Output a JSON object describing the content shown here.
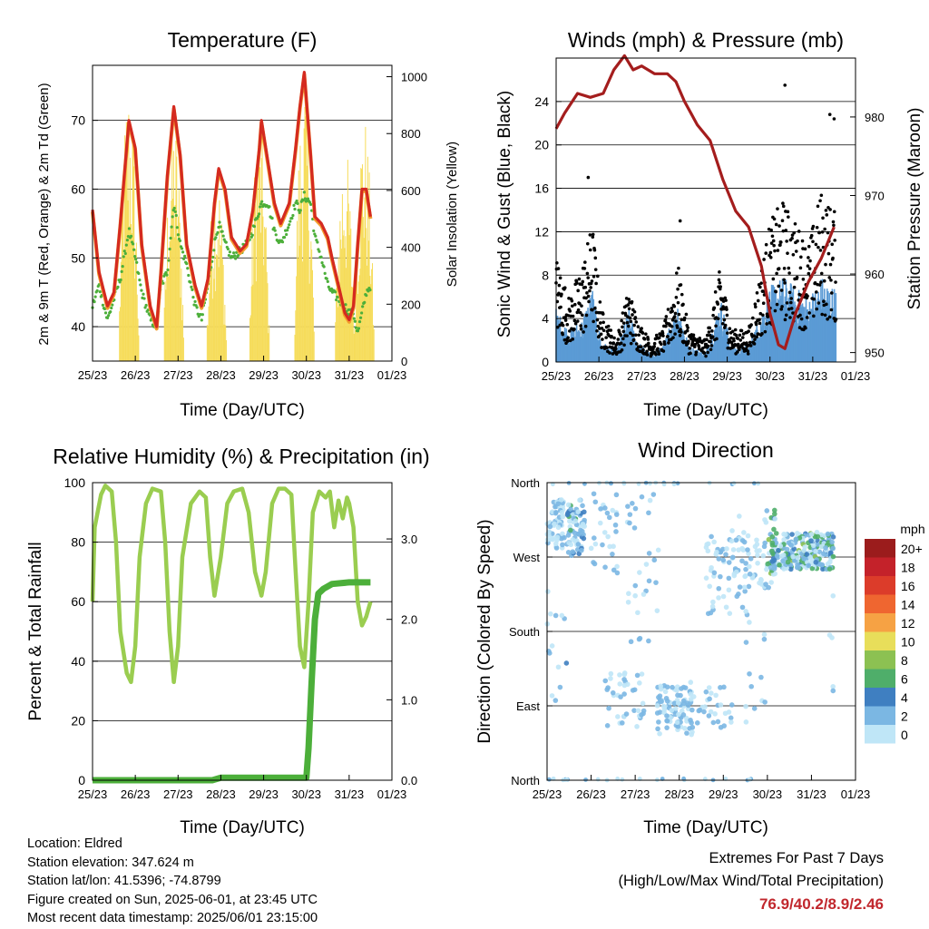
{
  "panels": {
    "temperature": {
      "title": "Temperature (F)",
      "ylabel": "2m & 9m T (Red, Orange) & 2m Td (Green)",
      "y2label": "Solar Insolation (Yellow)",
      "xlabel": "Time (Day/UTC)"
    },
    "winds": {
      "title": "Winds (mph) & Pressure (mb)",
      "ylabel": "Sonic Wind & Gust (Blue, Black)",
      "y2label": "Station Pressure (Maroon)",
      "xlabel": "Time (Day/UTC)"
    },
    "humidity": {
      "title": "Relative Humidity (%) & Precipitation (in)",
      "ylabel": "Percent & Total Rainfall",
      "xlabel": "Time (Day/UTC)"
    },
    "direction": {
      "title": "Wind Direction",
      "ylabel": "Direction (Colored By Speed)",
      "xlabel": "Time (Day/UTC)",
      "legend_title": "mph"
    }
  },
  "info": {
    "location": "Location: Eldred",
    "elevation": "Station elevation: 347.624 m",
    "latlon": "Station lat/lon: 41.5396; -74.8799",
    "created": "Figure created on Sun, 2025-06-01, at 23:45 UTC",
    "recent": "Most recent data timestamp: 2025/06/01 23:15:00"
  },
  "extremes": {
    "title": "Extremes For Past 7 Days",
    "subtitle": "(High/Low/Max Wind/Total Precipitation)",
    "values": "76.9/40.2/8.9/2.46"
  },
  "colors": {
    "temp_2m": "#d42a20",
    "temp_9m": "#f39b2d",
    "dewpoint": "#4caf3a",
    "solar": "#f6dc5a",
    "wind": "#5b9bd5",
    "gust": "#000000",
    "pressure": "#a41d1d",
    "rh": "#9acd50",
    "precip": "#4caf3a"
  },
  "chart_data": [
    {
      "id": "temperature",
      "type": "line",
      "x_ticks": [
        "25/23",
        "26/23",
        "27/23",
        "28/23",
        "29/23",
        "30/23",
        "31/23",
        "01/23"
      ],
      "ylim": [
        35,
        78
      ],
      "y_ticks": [
        40,
        50,
        60,
        70
      ],
      "y2lim": [
        0,
        1040
      ],
      "y2_ticks": [
        0,
        200,
        400,
        600,
        800,
        1000
      ],
      "series": [
        {
          "role": "temp_2m",
          "points": [
            [
              0,
              57
            ],
            [
              0.15,
              48
            ],
            [
              0.35,
              43
            ],
            [
              0.5,
              45
            ],
            [
              0.65,
              55
            ],
            [
              0.85,
              70
            ],
            [
              1.0,
              66
            ],
            [
              1.15,
              52
            ],
            [
              1.35,
              43
            ],
            [
              1.5,
              40
            ],
            [
              1.6,
              48
            ],
            [
              1.75,
              62
            ],
            [
              1.9,
              72
            ],
            [
              2.05,
              65
            ],
            [
              2.2,
              52
            ],
            [
              2.4,
              46
            ],
            [
              2.55,
              43
            ],
            [
              2.7,
              47
            ],
            [
              2.85,
              58
            ],
            [
              2.95,
              63
            ],
            [
              3.1,
              60
            ],
            [
              3.25,
              53
            ],
            [
              3.45,
              51
            ],
            [
              3.6,
              52
            ],
            [
              3.75,
              57
            ],
            [
              3.9,
              66
            ],
            [
              3.95,
              70
            ],
            [
              4.1,
              64
            ],
            [
              4.25,
              58
            ],
            [
              4.4,
              55
            ],
            [
              4.6,
              58
            ],
            [
              4.75,
              66
            ],
            [
              4.85,
              72
            ],
            [
              4.95,
              77
            ],
            [
              5.1,
              65
            ],
            [
              5.2,
              56
            ],
            [
              5.35,
              55
            ],
            [
              5.5,
              53
            ],
            [
              5.6,
              50
            ],
            [
              5.75,
              46
            ],
            [
              5.9,
              42
            ],
            [
              6.0,
              41
            ],
            [
              6.1,
              43
            ],
            [
              6.2,
              52
            ],
            [
              6.3,
              60
            ],
            [
              6.4,
              60
            ],
            [
              6.5,
              56
            ]
          ]
        },
        {
          "role": "dewpoint",
          "points": [
            [
              0,
              43
            ],
            [
              0.15,
              46
            ],
            [
              0.35,
              41
            ],
            [
              0.5,
              44
            ],
            [
              0.65,
              47
            ],
            [
              0.85,
              54
            ],
            [
              1.0,
              50
            ],
            [
              1.15,
              45
            ],
            [
              1.35,
              41
            ],
            [
              1.5,
              40
            ],
            [
              1.6,
              46
            ],
            [
              1.75,
              48
            ],
            [
              1.9,
              58
            ],
            [
              2.05,
              52
            ],
            [
              2.2,
              49
            ],
            [
              2.4,
              43
            ],
            [
              2.55,
              41
            ],
            [
              2.7,
              46
            ],
            [
              2.85,
              52
            ],
            [
              2.95,
              55
            ],
            [
              3.1,
              52
            ],
            [
              3.25,
              50
            ],
            [
              3.45,
              51
            ],
            [
              3.6,
              52
            ],
            [
              3.75,
              54
            ],
            [
              3.9,
              57
            ],
            [
              3.95,
              58
            ],
            [
              4.1,
              58
            ],
            [
              4.25,
              54
            ],
            [
              4.4,
              52
            ],
            [
              4.6,
              55
            ],
            [
              4.75,
              58
            ],
            [
              4.85,
              57
            ],
            [
              4.95,
              59
            ],
            [
              5.1,
              58
            ],
            [
              5.2,
              53
            ],
            [
              5.35,
              50
            ],
            [
              5.5,
              46
            ],
            [
              5.6,
              45
            ],
            [
              5.75,
              44
            ],
            [
              5.9,
              43
            ],
            [
              6.0,
              42
            ],
            [
              6.1,
              42
            ],
            [
              6.2,
              39
            ],
            [
              6.3,
              42
            ],
            [
              6.4,
              45
            ],
            [
              6.5,
              46
            ]
          ]
        },
        {
          "role": "solar",
          "peaks": [
            [
              0.85,
              1000
            ],
            [
              1.9,
              880
            ],
            [
              2.9,
              700
            ],
            [
              3.9,
              860
            ],
            [
              4.95,
              1010
            ],
            [
              5.9,
              780
            ],
            [
              6.35,
              880
            ]
          ]
        }
      ]
    },
    {
      "id": "winds",
      "type": "line",
      "x_ticks": [
        "25/23",
        "26/23",
        "27/23",
        "28/23",
        "29/23",
        "30/23",
        "31/23",
        "01/23"
      ],
      "ylim": [
        0,
        28
      ],
      "y_ticks": [
        0,
        4,
        8,
        12,
        16,
        20,
        24
      ],
      "y2lim": [
        948.8,
        987.5
      ],
      "y2_ticks": [
        950,
        960,
        970,
        980
      ],
      "series": [
        {
          "role": "pressure",
          "points": [
            [
              0,
              978.5
            ],
            [
              0.2,
              980.5
            ],
            [
              0.5,
              983
            ],
            [
              0.8,
              982.5
            ],
            [
              1.1,
              983
            ],
            [
              1.35,
              986
            ],
            [
              1.6,
              987.8
            ],
            [
              1.8,
              986
            ],
            [
              2.0,
              986.5
            ],
            [
              2.3,
              985.5
            ],
            [
              2.6,
              985.5
            ],
            [
              2.8,
              984.5
            ],
            [
              3.0,
              982
            ],
            [
              3.3,
              979
            ],
            [
              3.6,
              977
            ],
            [
              3.9,
              972
            ],
            [
              4.2,
              968
            ],
            [
              4.5,
              966
            ],
            [
              4.8,
              961
            ],
            [
              5.0,
              955
            ],
            [
              5.2,
              951
            ],
            [
              5.35,
              950.5
            ],
            [
              5.6,
              955
            ],
            [
              5.9,
              959
            ],
            [
              6.2,
              962
            ],
            [
              6.5,
              966
            ]
          ]
        },
        {
          "role": "wind",
          "description": "sustained wind traces daily peaks up to ~8 mph"
        },
        {
          "role": "gust",
          "description": "gust dots up to ~25.5 mph"
        }
      ]
    },
    {
      "id": "humidity",
      "type": "line",
      "x_ticks": [
        "25/23",
        "26/23",
        "27/23",
        "28/23",
        "29/23",
        "30/23",
        "31/23",
        "01/23"
      ],
      "ylim": [
        0,
        100
      ],
      "y_ticks": [
        0,
        20,
        40,
        60,
        80,
        100
      ],
      "y2lim": [
        0,
        3.7
      ],
      "y2_ticks": [
        "0.0",
        "1.0",
        "2.0",
        "3.0"
      ],
      "series": [
        {
          "role": "rh",
          "points": [
            [
              0,
              60
            ],
            [
              0.05,
              85
            ],
            [
              0.2,
              96
            ],
            [
              0.3,
              99
            ],
            [
              0.45,
              97
            ],
            [
              0.55,
              80
            ],
            [
              0.65,
              50
            ],
            [
              0.8,
              36
            ],
            [
              0.9,
              33
            ],
            [
              1.0,
              45
            ],
            [
              1.1,
              75
            ],
            [
              1.25,
              93
            ],
            [
              1.4,
              98
            ],
            [
              1.6,
              97
            ],
            [
              1.7,
              80
            ],
            [
              1.8,
              50
            ],
            [
              1.9,
              33
            ],
            [
              2.0,
              45
            ],
            [
              2.1,
              75
            ],
            [
              2.3,
              93
            ],
            [
              2.5,
              97
            ],
            [
              2.65,
              95
            ],
            [
              2.75,
              75
            ],
            [
              2.85,
              62
            ],
            [
              3.0,
              75
            ],
            [
              3.15,
              93
            ],
            [
              3.3,
              97
            ],
            [
              3.5,
              98
            ],
            [
              3.65,
              90
            ],
            [
              3.8,
              70
            ],
            [
              3.95,
              62
            ],
            [
              4.05,
              70
            ],
            [
              4.2,
              93
            ],
            [
              4.35,
              98
            ],
            [
              4.5,
              98
            ],
            [
              4.65,
              96
            ],
            [
              4.75,
              70
            ],
            [
              4.85,
              45
            ],
            [
              4.95,
              38
            ],
            [
              5.05,
              60
            ],
            [
              5.15,
              90
            ],
            [
              5.3,
              97
            ],
            [
              5.45,
              95
            ],
            [
              5.55,
              97
            ],
            [
              5.65,
              85
            ],
            [
              5.75,
              94
            ],
            [
              5.85,
              88
            ],
            [
              5.95,
              95
            ],
            [
              6.0,
              93
            ],
            [
              6.1,
              85
            ],
            [
              6.2,
              60
            ],
            [
              6.3,
              52
            ],
            [
              6.4,
              55
            ],
            [
              6.5,
              60
            ]
          ]
        },
        {
          "role": "precip",
          "points": [
            [
              0,
              0
            ],
            [
              2.8,
              0
            ],
            [
              3.0,
              0.03
            ],
            [
              4.5,
              0.03
            ],
            [
              5.0,
              0.03
            ],
            [
              5.05,
              0.4
            ],
            [
              5.12,
              1.2
            ],
            [
              5.2,
              2.0
            ],
            [
              5.28,
              2.32
            ],
            [
              5.4,
              2.38
            ],
            [
              5.6,
              2.44
            ],
            [
              6.0,
              2.46
            ],
            [
              6.5,
              2.46
            ]
          ]
        }
      ]
    },
    {
      "id": "direction",
      "type": "scatter",
      "x_ticks": [
        "25/23",
        "26/23",
        "27/23",
        "28/23",
        "29/23",
        "30/23",
        "31/23",
        "01/23"
      ],
      "y_ticks": [
        "North",
        "West",
        "South",
        "East",
        "North"
      ],
      "ylim": [
        0,
        360
      ],
      "legend": {
        "title": "mph",
        "levels": [
          "20+",
          "18",
          "16",
          "14",
          "12",
          "10",
          "8",
          "6",
          "4",
          "2",
          "0"
        ],
        "colors": [
          "#9b1c1c",
          "#c4222a",
          "#dc3c2a",
          "#ef6630",
          "#f6a244",
          "#e8de5a",
          "#8cc152",
          "#4fae6a",
          "#3f7fc1",
          "#7bb7e3",
          "#bfe6f7"
        ]
      },
      "description": "points clustered near West/North early, East on day 28, West from day 30 onward"
    }
  ]
}
